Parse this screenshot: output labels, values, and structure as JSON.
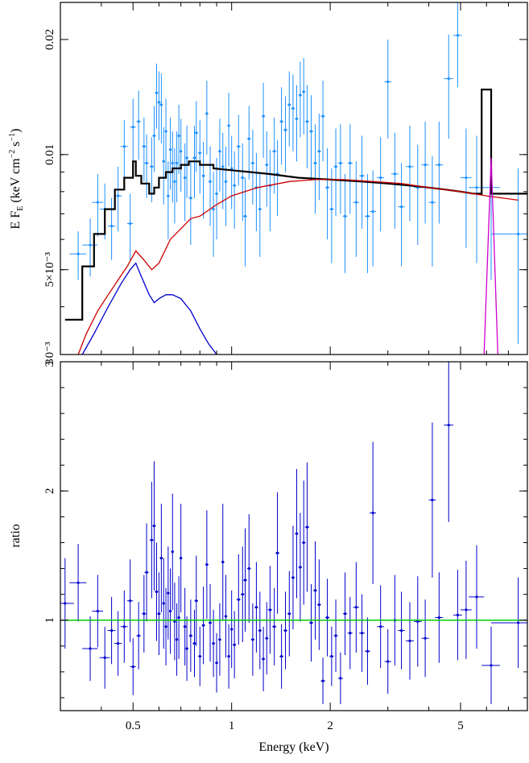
{
  "chart_data": [
    {
      "type": "line",
      "panel": "spectrum",
      "ylabel": "E F(keV cm s)",
      "ylabel_parts": {
        "main": "E F",
        "sub": "E",
        "unit_open": " (keV cm",
        "exp1": "−2",
        "mid": " s",
        "exp2": "−1",
        "close": ")"
      },
      "xscale": "log",
      "yscale": "log",
      "xlim": [
        0.3,
        8.0
      ],
      "ylim": [
        0.003,
        0.025
      ],
      "yticks": [
        {
          "value": 0.003,
          "label": "3 0⁻³"
        },
        {
          "value": 0.005,
          "label": "5×10⁻³"
        },
        {
          "value": 0.01,
          "label": "0.01"
        },
        {
          "value": 0.02,
          "label": "0.02"
        }
      ],
      "series": [
        {
          "role": "total-model",
          "color": "#000000",
          "x": [
            0.31,
            0.35,
            0.35,
            0.38,
            0.38,
            0.41,
            0.41,
            0.44,
            0.44,
            0.47,
            0.47,
            0.5,
            0.5,
            0.51,
            0.51,
            0.53,
            0.53,
            0.56,
            0.56,
            0.58,
            0.58,
            0.6,
            0.6,
            0.63,
            0.63,
            0.66,
            0.66,
            0.7,
            0.7,
            0.74,
            0.74,
            0.8,
            0.8,
            0.88,
            0.88,
            1.0,
            1.3,
            1.6,
            2.0,
            2.5,
            3.0,
            3.5,
            4.0,
            4.5,
            5.0,
            5.5,
            5.8,
            5.8,
            6.2,
            6.2,
            6.7,
            6.7,
            8.0
          ],
          "y": [
            0.0037,
            0.0037,
            0.0051,
            0.0051,
            0.0062,
            0.0062,
            0.0072,
            0.0072,
            0.0081,
            0.0081,
            0.0087,
            0.0087,
            0.0096,
            0.0096,
            0.0088,
            0.0088,
            0.0084,
            0.0084,
            0.0079,
            0.0079,
            0.0082,
            0.0082,
            0.0087,
            0.0087,
            0.009,
            0.009,
            0.0092,
            0.0092,
            0.0094,
            0.0094,
            0.0096,
            0.0096,
            0.0094,
            0.0094,
            0.0092,
            0.0091,
            0.0089,
            0.0087,
            0.0086,
            0.0085,
            0.0084,
            0.0083,
            0.0082,
            0.0081,
            0.008,
            0.0079,
            0.0079,
            0.0148,
            0.0148,
            0.0079,
            0.0079,
            0.0079,
            0.0079
          ]
        },
        {
          "role": "powerlaw-component",
          "color": "#cc0000",
          "x": [
            0.34,
            0.36,
            0.39,
            0.42,
            0.45,
            0.48,
            0.51,
            0.54,
            0.57,
            0.6,
            0.65,
            0.7,
            0.75,
            0.8,
            0.9,
            1.0,
            1.2,
            1.5,
            1.8,
            2.2,
            2.7,
            3.3,
            4.0,
            5.0,
            6.0,
            7.5
          ],
          "y": [
            0.0029,
            0.0034,
            0.0039,
            0.0043,
            0.0047,
            0.0051,
            0.0056,
            0.0053,
            0.005,
            0.0052,
            0.006,
            0.0064,
            0.0068,
            0.0069,
            0.0074,
            0.0078,
            0.0082,
            0.0085,
            0.0086,
            0.0086,
            0.0085,
            0.0084,
            0.0082,
            0.008,
            0.0078,
            0.0076
          ]
        },
        {
          "role": "soft-component",
          "color": "#0000cc",
          "x": [
            0.35,
            0.38,
            0.42,
            0.46,
            0.49,
            0.51,
            0.53,
            0.56,
            0.58,
            0.6,
            0.63,
            0.66,
            0.7,
            0.75,
            0.8,
            0.85,
            0.9
          ],
          "y": [
            0.0029,
            0.0034,
            0.004,
            0.0046,
            0.005,
            0.0052,
            0.0048,
            0.0043,
            0.0041,
            0.0042,
            0.0043,
            0.0043,
            0.0042,
            0.0039,
            0.0035,
            0.0032,
            0.0029
          ]
        },
        {
          "role": "line-component",
          "color": "#cc00cc",
          "x": [
            5.9,
            6.2,
            6.5
          ],
          "y": [
            0.0029,
            0.0098,
            0.0029
          ]
        }
      ],
      "points": {
        "color": "#1e90ff",
        "x": [
          0.34,
          0.37,
          0.39,
          0.41,
          0.43,
          0.45,
          0.47,
          0.49,
          0.5,
          0.52,
          0.54,
          0.55,
          0.57,
          0.58,
          0.59,
          0.6,
          0.61,
          0.62,
          0.63,
          0.64,
          0.65,
          0.66,
          0.67,
          0.68,
          0.69,
          0.7,
          0.72,
          0.73,
          0.75,
          0.77,
          0.78,
          0.8,
          0.82,
          0.84,
          0.86,
          0.88,
          0.9,
          0.92,
          0.94,
          0.96,
          0.98,
          1.0,
          1.02,
          1.05,
          1.08,
          1.1,
          1.13,
          1.16,
          1.19,
          1.22,
          1.25,
          1.28,
          1.31,
          1.35,
          1.38,
          1.42,
          1.46,
          1.5,
          1.54,
          1.58,
          1.62,
          1.66,
          1.7,
          1.75,
          1.8,
          1.85,
          1.9,
          1.96,
          2.02,
          2.08,
          2.15,
          2.22,
          2.3,
          2.4,
          2.5,
          2.6,
          2.7,
          2.85,
          3.0,
          3.15,
          3.3,
          3.5,
          3.7,
          3.9,
          4.1,
          4.3,
          4.6,
          4.9,
          5.2,
          5.6,
          6.2,
          7.5
        ],
        "y": [
          0.0055,
          0.0058,
          0.0075,
          0.0072,
          0.0065,
          0.0078,
          0.0105,
          0.0066,
          0.0118,
          0.0122,
          0.0105,
          0.0095,
          0.0093,
          0.0112,
          0.0145,
          0.0137,
          0.0135,
          0.0096,
          0.0115,
          0.0078,
          0.0103,
          0.0095,
          0.0085,
          0.0095,
          0.0112,
          0.0102,
          0.0087,
          0.0098,
          0.0077,
          0.0098,
          0.0114,
          0.0101,
          0.0088,
          0.0128,
          0.0085,
          0.0072,
          0.0079,
          0.0102,
          0.0093,
          0.0085,
          0.0119,
          0.0092,
          0.0083,
          0.0105,
          0.0087,
          0.0069,
          0.011,
          0.0095,
          0.0082,
          0.0072,
          0.0126,
          0.0094,
          0.0083,
          0.0102,
          0.0089,
          0.0122,
          0.0116,
          0.0135,
          0.0132,
          0.0124,
          0.0143,
          0.0146,
          0.0122,
          0.0115,
          0.0095,
          0.0102,
          0.0126,
          0.0082,
          0.0072,
          0.0093,
          0.0095,
          0.0069,
          0.0095,
          0.0075,
          0.0088,
          0.0069,
          0.0071,
          0.0087,
          0.0155,
          0.0089,
          0.0073,
          0.0093,
          0.0082,
          0.0094,
          0.0075,
          0.0094,
          0.0158,
          0.0205,
          0.0087,
          0.0082,
          0.0082,
          0.0062
        ],
        "yerr": [
          0.0008,
          0.001,
          0.0014,
          0.0012,
          0.0012,
          0.0015,
          0.0018,
          0.0013,
          0.0022,
          0.0025,
          0.002,
          0.0018,
          0.0018,
          0.0022,
          0.0028,
          0.0028,
          0.0028,
          0.0022,
          0.0025,
          0.0018,
          0.0022,
          0.002,
          0.0019,
          0.002,
          0.0023,
          0.0022,
          0.002,
          0.0021,
          0.0019,
          0.0021,
          0.0024,
          0.0022,
          0.002,
          0.0028,
          0.002,
          0.0018,
          0.0019,
          0.0022,
          0.0021,
          0.002,
          0.0026,
          0.002,
          0.0019,
          0.0022,
          0.002,
          0.0018,
          0.0024,
          0.0021,
          0.0019,
          0.0018,
          0.0028,
          0.0021,
          0.002,
          0.0023,
          0.002,
          0.0028,
          0.0026,
          0.003,
          0.003,
          0.0028,
          0.0032,
          0.0033,
          0.003,
          0.0028,
          0.0025,
          0.0026,
          0.003,
          0.0022,
          0.002,
          0.0024,
          0.0025,
          0.002,
          0.0025,
          0.0021,
          0.0024,
          0.002,
          0.002,
          0.0024,
          0.0045,
          0.0025,
          0.0022,
          0.0026,
          0.0024,
          0.0028,
          0.0024,
          0.0028,
          0.0048,
          0.0055,
          0.003,
          0.003,
          0.0035,
          0.003
        ],
        "xerr": [
          0.02,
          0.02,
          0.015,
          0.015,
          0.012,
          0.012,
          0.012,
          0.01,
          0.01,
          0.008,
          0.008,
          0.008,
          0.008,
          0.007,
          0.007,
          0.007,
          0.007,
          0.006,
          0.006,
          0.006,
          0.006,
          0.006,
          0.006,
          0.006,
          0.006,
          0.006,
          0.008,
          0.008,
          0.01,
          0.01,
          0.01,
          0.01,
          0.01,
          0.01,
          0.01,
          0.01,
          0.01,
          0.01,
          0.01,
          0.01,
          0.01,
          0.01,
          0.012,
          0.015,
          0.015,
          0.015,
          0.015,
          0.015,
          0.015,
          0.015,
          0.015,
          0.015,
          0.02,
          0.02,
          0.02,
          0.02,
          0.02,
          0.02,
          0.02,
          0.02,
          0.02,
          0.02,
          0.025,
          0.025,
          0.025,
          0.025,
          0.03,
          0.03,
          0.03,
          0.03,
          0.035,
          0.035,
          0.04,
          0.05,
          0.05,
          0.05,
          0.06,
          0.07,
          0.07,
          0.08,
          0.08,
          0.1,
          0.1,
          0.1,
          0.1,
          0.12,
          0.15,
          0.15,
          0.2,
          0.3,
          0.4,
          1.3
        ]
      }
    },
    {
      "type": "scatter",
      "panel": "ratio",
      "xlabel": "Energy (keV)",
      "ylabel": "ratio",
      "xscale": "log",
      "xlim": [
        0.3,
        8.0
      ],
      "ylim": [
        0.3,
        3.0
      ],
      "xticks": [
        {
          "value": 0.5,
          "label": "0.5"
        },
        {
          "value": 1,
          "label": "1"
        },
        {
          "value": 2,
          "label": "2"
        },
        {
          "value": 5,
          "label": "5"
        }
      ],
      "yticks": [
        {
          "value": 1,
          "label": "1"
        },
        {
          "value": 2,
          "label": "2"
        },
        {
          "value": 3,
          "label": "3"
        }
      ],
      "reference_line": {
        "value": 1.0,
        "color": "#00cc00"
      },
      "points": {
        "color": "#0000cc",
        "x": [
          0.31,
          0.34,
          0.37,
          0.39,
          0.41,
          0.43,
          0.45,
          0.47,
          0.49,
          0.5,
          0.52,
          0.54,
          0.55,
          0.57,
          0.58,
          0.59,
          0.6,
          0.61,
          0.62,
          0.63,
          0.64,
          0.65,
          0.66,
          0.67,
          0.68,
          0.69,
          0.7,
          0.72,
          0.73,
          0.75,
          0.77,
          0.78,
          0.8,
          0.82,
          0.84,
          0.86,
          0.88,
          0.9,
          0.92,
          0.94,
          0.96,
          0.98,
          1.0,
          1.02,
          1.05,
          1.08,
          1.1,
          1.13,
          1.16,
          1.19,
          1.22,
          1.25,
          1.28,
          1.31,
          1.35,
          1.38,
          1.42,
          1.46,
          1.5,
          1.54,
          1.58,
          1.62,
          1.66,
          1.7,
          1.75,
          1.8,
          1.85,
          1.9,
          1.96,
          2.02,
          2.08,
          2.15,
          2.22,
          2.3,
          2.4,
          2.5,
          2.6,
          2.7,
          2.85,
          3.0,
          3.15,
          3.3,
          3.5,
          3.7,
          3.9,
          4.1,
          4.3,
          4.6,
          4.9,
          5.2,
          5.6,
          6.2,
          7.5
        ],
        "y": [
          1.13,
          1.29,
          0.78,
          1.07,
          0.71,
          0.92,
          0.82,
          0.95,
          1.15,
          0.64,
          0.88,
          1.05,
          1.37,
          1.62,
          1.73,
          1.22,
          1.05,
          1.48,
          1.13,
          0.95,
          1.21,
          1.07,
          1.53,
          0.99,
          0.85,
          1.02,
          1.48,
          0.95,
          0.78,
          0.88,
          0.82,
          1.15,
          0.72,
          0.96,
          1.43,
          0.98,
          0.82,
          0.67,
          0.85,
          1.45,
          1.03,
          0.72,
          0.93,
          0.81,
          1.16,
          1.2,
          1.31,
          1.4,
          0.85,
          1.1,
          0.92,
          0.7,
          0.86,
          1.08,
          0.95,
          1.52,
          0.72,
          0.92,
          1.05,
          1.33,
          1.67,
          1.41,
          1.6,
          1.72,
          0.98,
          1.23,
          1.12,
          0.53,
          1.02,
          0.72,
          0.88,
          0.55,
          1.05,
          0.9,
          1.1,
          0.9,
          0.76,
          1.83,
          0.95,
          0.68,
          1.0,
          0.92,
          0.84,
          0.99,
          0.86,
          1.93,
          1.02,
          2.51,
          1.04,
          1.08,
          1.18,
          0.65,
          0.98
        ],
        "yerr": [
          0.35,
          0.3,
          0.25,
          0.28,
          0.24,
          0.26,
          0.25,
          0.28,
          0.32,
          0.22,
          0.26,
          0.3,
          0.38,
          0.45,
          0.5,
          0.38,
          0.32,
          0.42,
          0.35,
          0.3,
          0.36,
          0.33,
          0.45,
          0.3,
          0.28,
          0.32,
          0.42,
          0.3,
          0.25,
          0.28,
          0.26,
          0.35,
          0.23,
          0.3,
          0.42,
          0.3,
          0.26,
          0.23,
          0.28,
          0.45,
          0.32,
          0.25,
          0.3,
          0.26,
          0.35,
          0.37,
          0.4,
          0.42,
          0.28,
          0.35,
          0.3,
          0.25,
          0.28,
          0.34,
          0.3,
          0.47,
          0.25,
          0.3,
          0.33,
          0.4,
          0.5,
          0.42,
          0.48,
          0.5,
          0.3,
          0.38,
          0.35,
          0.18,
          0.3,
          0.23,
          0.28,
          0.2,
          0.32,
          0.28,
          0.35,
          0.3,
          0.26,
          0.55,
          0.32,
          0.25,
          0.35,
          0.3,
          0.3,
          0.35,
          0.3,
          0.6,
          0.35,
          0.75,
          0.35,
          0.38,
          0.4,
          0.3,
          0.35
        ],
        "xerr": [
          0.02,
          0.02,
          0.02,
          0.015,
          0.015,
          0.012,
          0.012,
          0.012,
          0.01,
          0.01,
          0.008,
          0.008,
          0.008,
          0.008,
          0.007,
          0.007,
          0.007,
          0.007,
          0.006,
          0.006,
          0.006,
          0.006,
          0.006,
          0.006,
          0.006,
          0.006,
          0.006,
          0.008,
          0.008,
          0.01,
          0.01,
          0.01,
          0.01,
          0.01,
          0.01,
          0.01,
          0.01,
          0.01,
          0.01,
          0.01,
          0.01,
          0.01,
          0.01,
          0.012,
          0.015,
          0.015,
          0.015,
          0.015,
          0.015,
          0.015,
          0.015,
          0.015,
          0.015,
          0.02,
          0.02,
          0.02,
          0.02,
          0.02,
          0.02,
          0.02,
          0.02,
          0.02,
          0.02,
          0.025,
          0.025,
          0.025,
          0.025,
          0.03,
          0.03,
          0.03,
          0.03,
          0.035,
          0.035,
          0.04,
          0.05,
          0.05,
          0.05,
          0.06,
          0.07,
          0.07,
          0.08,
          0.08,
          0.1,
          0.1,
          0.1,
          0.1,
          0.12,
          0.15,
          0.15,
          0.2,
          0.3,
          0.4,
          1.3
        ]
      }
    }
  ]
}
